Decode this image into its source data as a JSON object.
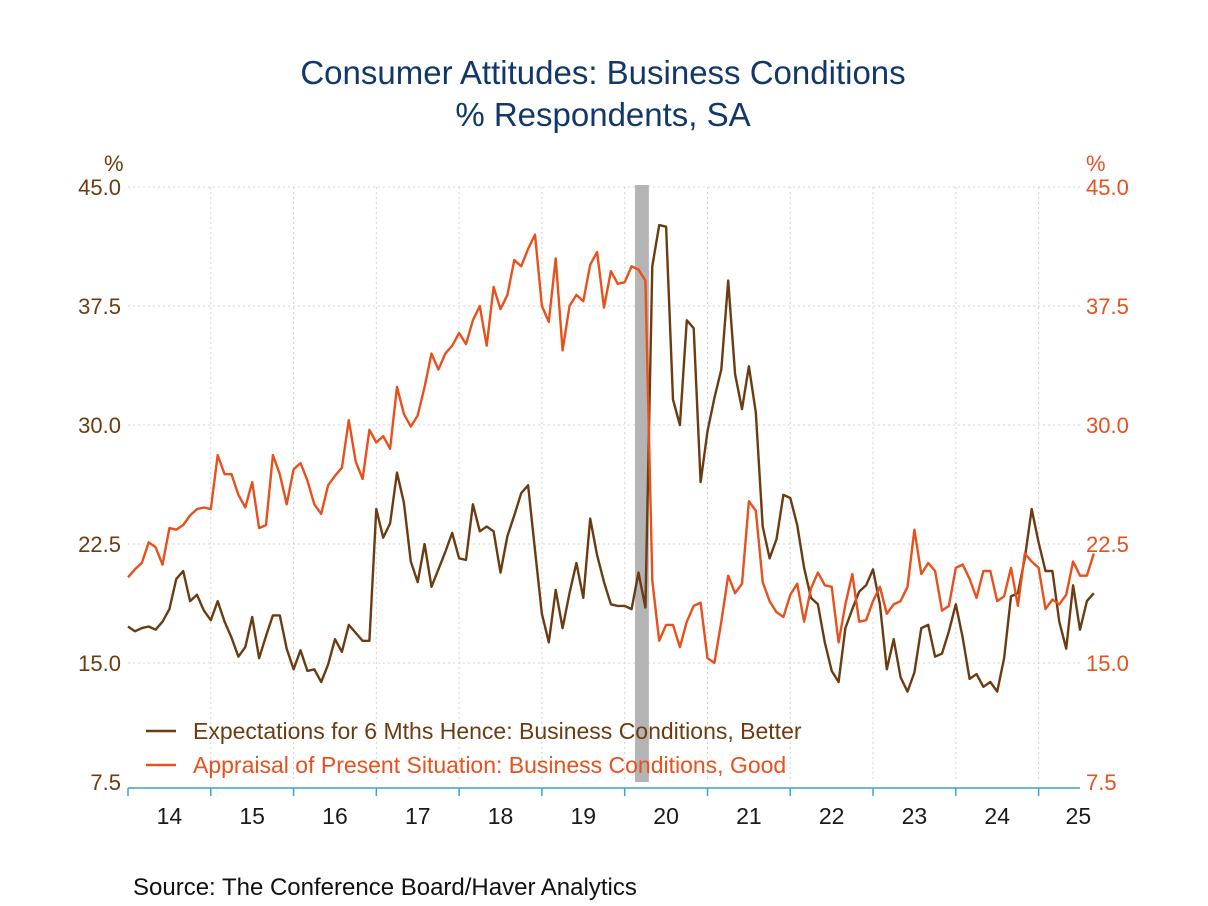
{
  "chart_data": {
    "type": "line",
    "title": "Consumer Attitudes: Business Conditions",
    "subtitle": "% Respondents, SA",
    "ylabel_left": "%",
    "ylabel_right": "%",
    "ylim": [
      7.5,
      45.0
    ],
    "yticks": [
      "45.0",
      "37.5",
      "30.0",
      "22.5",
      "15.0",
      "7.5"
    ],
    "ytick_values": [
      45.0,
      37.5,
      30.0,
      22.5,
      15.0,
      7.5
    ],
    "xlim": [
      2014.0,
      2025.5
    ],
    "xticks": [
      {
        "label": "14",
        "year": 2014
      },
      {
        "label": "15",
        "year": 2015
      },
      {
        "label": "16",
        "year": 2016
      },
      {
        "label": "17",
        "year": 2017
      },
      {
        "label": "18",
        "year": 2018
      },
      {
        "label": "19",
        "year": 2019
      },
      {
        "label": "20",
        "year": 2020
      },
      {
        "label": "21",
        "year": 2021
      },
      {
        "label": "22",
        "year": 2022
      },
      {
        "label": "23",
        "year": 2023
      },
      {
        "label": "24",
        "year": 2024
      },
      {
        "label": "25",
        "year": 2025
      }
    ],
    "recession": {
      "start": 2020.125,
      "end": 2020.292
    },
    "grid": true,
    "legend_position": "bottom-left",
    "source": "Source:  The Conference Board/Haver Analytics",
    "series": [
      {
        "name": "Expectations for 6 Mths Hence: Business Conditions, Better",
        "color": "#6b3c12",
        "start": 2014.0,
        "step": 0.0833333,
        "values": [
          17.3,
          17.0,
          17.2,
          17.3,
          17.1,
          17.6,
          18.4,
          20.3,
          20.8,
          18.9,
          19.3,
          18.3,
          17.7,
          18.9,
          17.6,
          16.6,
          15.4,
          16.0,
          17.9,
          15.3,
          16.7,
          18.0,
          18.0,
          15.9,
          14.6,
          15.8,
          14.5,
          14.6,
          13.8,
          14.9,
          16.5,
          15.7,
          17.4,
          16.9,
          16.4,
          16.4,
          24.7,
          22.9,
          23.8,
          27.0,
          25.1,
          21.4,
          20.1,
          22.5,
          19.8,
          20.9,
          22.0,
          23.2,
          21.6,
          21.5,
          25.0,
          23.3,
          23.6,
          23.3,
          20.7,
          23.0,
          24.3,
          25.7,
          26.2,
          22.1,
          18.1,
          16.3,
          19.6,
          17.2,
          19.4,
          21.3,
          19.1,
          24.1,
          21.8,
          20.1,
          18.7,
          18.6,
          18.6,
          18.4,
          20.7,
          18.5,
          40.0,
          42.6,
          42.5,
          31.6,
          30.0,
          36.6,
          36.1,
          26.4,
          29.6,
          31.7,
          33.5,
          39.1,
          33.2,
          31.0,
          33.7,
          30.8,
          23.6,
          21.6,
          22.8,
          25.6,
          25.4,
          23.7,
          21.0,
          19.1,
          18.7,
          16.3,
          14.5,
          13.8,
          17.2,
          18.4,
          19.5,
          19.9,
          20.9,
          18.7,
          14.6,
          16.5,
          14.1,
          13.2,
          14.4,
          17.2,
          17.4,
          15.4,
          15.6,
          17.0,
          18.7,
          16.6,
          14.0,
          14.3,
          13.5,
          13.8,
          13.2,
          15.3,
          19.2,
          19.4,
          21.6,
          24.7,
          22.6,
          20.8,
          20.8,
          17.6,
          15.9,
          19.9,
          17.1,
          18.9,
          19.4
        ]
      },
      {
        "name": "Appraisal of Present Situation: Business Conditions, Good",
        "color": "#e8501c",
        "start": 2014.0,
        "step": 0.0833333,
        "values": [
          20.4,
          20.9,
          21.3,
          22.6,
          22.3,
          21.2,
          23.5,
          23.4,
          23.7,
          24.3,
          24.7,
          24.8,
          24.7,
          28.1,
          26.9,
          26.9,
          25.6,
          24.8,
          26.4,
          23.5,
          23.7,
          28.1,
          26.9,
          25.0,
          27.2,
          27.6,
          26.5,
          25.0,
          24.4,
          26.2,
          26.8,
          27.3,
          30.3,
          27.7,
          26.6,
          29.7,
          28.9,
          29.3,
          28.5,
          32.4,
          30.7,
          29.9,
          30.6,
          32.4,
          34.5,
          33.5,
          34.5,
          35.0,
          35.8,
          35.1,
          36.6,
          37.5,
          35.0,
          38.7,
          37.3,
          38.2,
          40.4,
          40.0,
          41.1,
          42.0,
          37.5,
          36.5,
          40.5,
          34.7,
          37.5,
          38.2,
          37.8,
          40.1,
          40.9,
          37.4,
          39.7,
          38.9,
          39.0,
          40.0,
          39.8,
          39.1,
          20.2,
          16.4,
          17.4,
          17.4,
          16.0,
          17.6,
          18.6,
          18.8,
          15.3,
          15.0,
          17.6,
          20.5,
          19.4,
          20.0,
          25.2,
          24.6,
          20.1,
          18.9,
          18.2,
          17.9,
          19.3,
          20.0,
          17.6,
          19.7,
          20.7,
          19.9,
          19.8,
          16.3,
          18.7,
          20.6,
          17.6,
          17.7,
          18.9,
          19.8,
          18.1,
          18.7,
          18.9,
          19.8,
          23.4,
          20.6,
          21.3,
          20.8,
          18.3,
          18.6,
          21.0,
          21.2,
          20.3,
          19.1,
          20.8,
          20.8,
          18.9,
          19.2,
          21.0,
          18.6,
          21.9,
          21.4,
          21.0,
          18.4,
          19.0,
          18.7,
          19.3,
          21.4,
          20.5,
          20.5,
          21.9
        ]
      }
    ]
  }
}
